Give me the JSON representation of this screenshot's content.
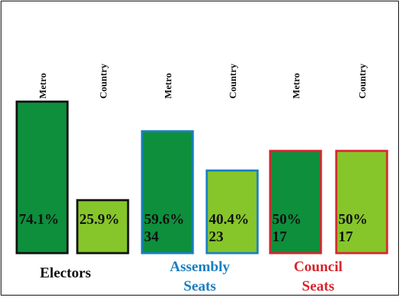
{
  "chart_data": {
    "type": "bar",
    "ylim": [
      0,
      80
    ],
    "baseline_value_note": "",
    "colors": {
      "metro": "#0d8f3c",
      "country": "#86c62a",
      "electors_border": "#111111",
      "assembly_border": "#1a7fc1",
      "council_border": "#d8262f",
      "electors_label": "#111111",
      "assembly_label": "#1a7fc1",
      "council_label": "#d8262f"
    },
    "groups": [
      {
        "name_lines": [
          "Electors"
        ],
        "style": "electors",
        "bars": [
          {
            "category": "Metro",
            "percent_label": "74.1%",
            "count_label": "",
            "value": 74.1,
            "color_key": "metro"
          },
          {
            "category": "Country",
            "percent_label": "25.9%",
            "count_label": "",
            "value": 25.9,
            "color_key": "country"
          }
        ]
      },
      {
        "name_lines": [
          "Assembly",
          "Seats"
        ],
        "style": "assembly",
        "bars": [
          {
            "category": "Metro",
            "percent_label": "59.6%",
            "count_label": "34",
            "value": 59.6,
            "color_key": "metro"
          },
          {
            "category": "Country",
            "percent_label": "40.4%",
            "count_label": "23",
            "value": 40.4,
            "color_key": "country"
          }
        ]
      },
      {
        "name_lines": [
          "Council",
          "Seats"
        ],
        "style": "council",
        "bars": [
          {
            "category": "Metro",
            "percent_label": "50%",
            "count_label": "17",
            "value": 50,
            "color_key": "metro"
          },
          {
            "category": "Country",
            "percent_label": "50%",
            "count_label": "17",
            "value": 50,
            "color_key": "country"
          }
        ]
      }
    ]
  }
}
